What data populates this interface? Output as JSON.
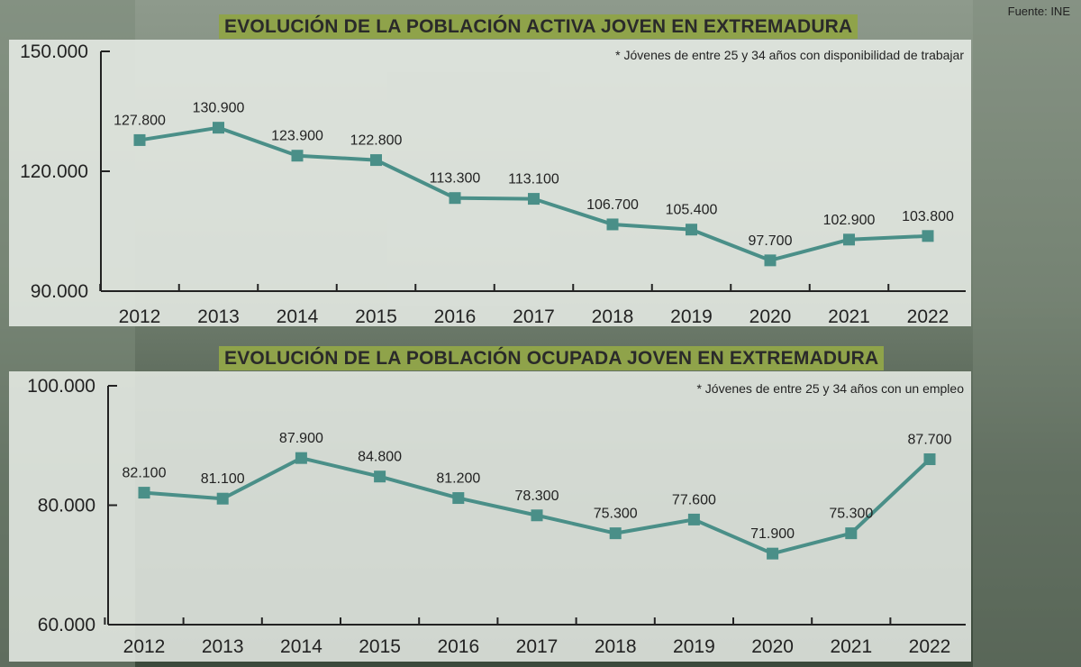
{
  "source": "Fuente: INE",
  "colors": {
    "line": "#4a8f88",
    "title_bg": "#8fa34a",
    "panel_bg": "#e9ede8",
    "axis": "#222222"
  },
  "chart_data": [
    {
      "type": "line",
      "title": "EVOLUCIÓN DE LA POBLACIÓN ACTIVA JOVEN EN EXTREMADURA",
      "note": "* Jóvenes de entre 25 y 34 años con disponibilidad de trabajar",
      "categories": [
        "2012",
        "2013",
        "2014",
        "2015",
        "2016",
        "2017",
        "2018",
        "2019",
        "2020",
        "2021",
        "2022"
      ],
      "values": [
        127800,
        130900,
        123900,
        122800,
        113300,
        113100,
        106700,
        105400,
        97700,
        102900,
        103800
      ],
      "value_labels": [
        "127.800",
        "130.900",
        "123.900",
        "122.800",
        "113.300",
        "113.100",
        "106.700",
        "105.400",
        "97.700",
        "102.900",
        "103.800"
      ],
      "yticks": [
        90000,
        120000,
        150000
      ],
      "ytick_labels": [
        "90.000",
        "120.000",
        "150.000"
      ],
      "ylim": [
        90000,
        150000
      ],
      "grid": false
    },
    {
      "type": "line",
      "title": "EVOLUCIÓN DE LA POBLACIÓN OCUPADA JOVEN EN EXTREMADURA",
      "note": "* Jóvenes de entre 25 y 34 años con un empleo",
      "categories": [
        "2012",
        "2013",
        "2014",
        "2015",
        "2016",
        "2017",
        "2018",
        "2019",
        "2020",
        "2021",
        "2022"
      ],
      "values": [
        82100,
        81100,
        87900,
        84800,
        81200,
        78300,
        75300,
        77600,
        71900,
        75300,
        87700
      ],
      "value_labels": [
        "82.100",
        "81.100",
        "87.900",
        "84.800",
        "81.200",
        "78.300",
        "75.300",
        "77.600",
        "71.900",
        "75.300",
        "87.700"
      ],
      "yticks": [
        60000,
        80000,
        100000
      ],
      "ytick_labels": [
        "60.000",
        "80.000",
        "100.000"
      ],
      "ylim": [
        60000,
        100000
      ],
      "grid": false
    }
  ]
}
